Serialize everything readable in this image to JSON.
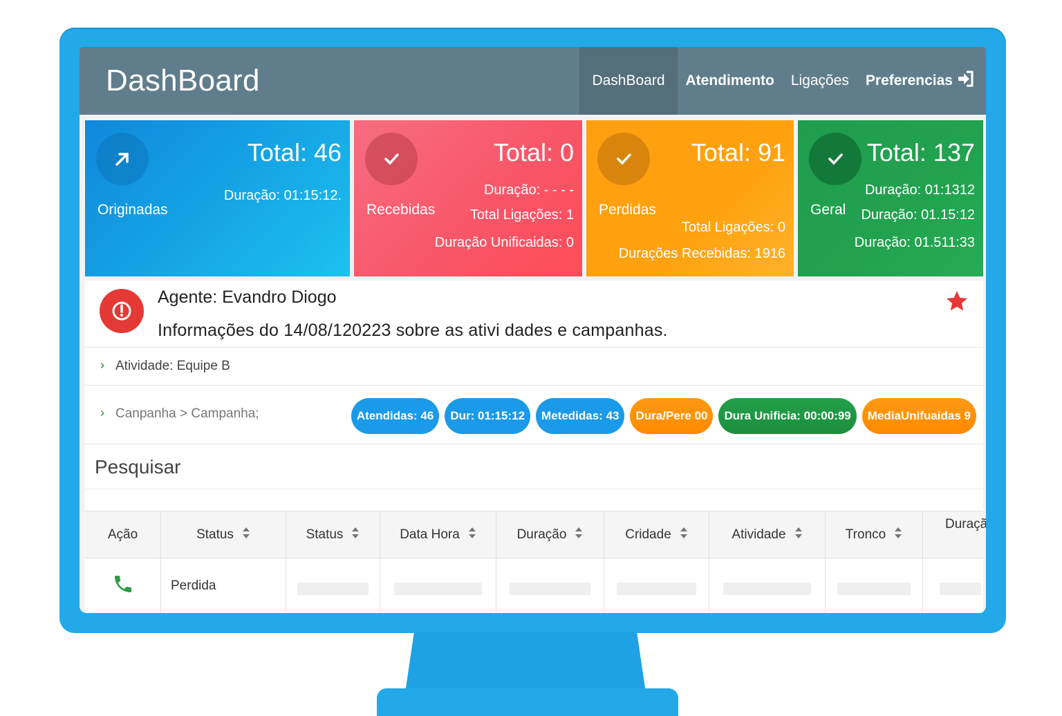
{
  "header": {
    "brand": "DashBoard",
    "nav": [
      {
        "label": "DashBoard",
        "active": true
      },
      {
        "label": "Atendimento"
      },
      {
        "label": "Ligações"
      },
      {
        "label": "Preferencias"
      }
    ],
    "login_icon": "sign-in-icon"
  },
  "cards": [
    {
      "label": "Originadas",
      "icon": "arrow-up-right-icon",
      "total": "Total: 46",
      "lines": [
        "Duração: 01:15:12."
      ],
      "color": "#169ee3"
    },
    {
      "label": "Recebidas",
      "icon": "check-icon",
      "total": "Total: 0",
      "lines": [
        "Duração: - - - -",
        "Total Ligações: 1",
        "Duração Unificaidas: 0"
      ],
      "color": "#f85c6e"
    },
    {
      "label": "Perdidas",
      "icon": "check-icon",
      "total": "Total: 91",
      "lines": [
        "Total Ligações: 0",
        "Durações Recebidas: 1916"
      ],
      "color": "#ffa412"
    },
    {
      "label": "Geral",
      "icon": "check-icon",
      "total": "Total: 137",
      "lines": [
        "Duração: 01:1312",
        "Duração: 01.15:12",
        "Duração: 01.511:33"
      ],
      "color": "#22a24f"
    }
  ],
  "agent": {
    "title": "Agente: Evandro Diogo",
    "info": "Informações do 14/08/120223 sobre as ativi dades e campanhas.",
    "alert_icon": "power-icon",
    "star_icon": "star-icon"
  },
  "activity": {
    "text": "Atividade: Equipe B"
  },
  "campaign": {
    "text": "Canpanha > Campanha;"
  },
  "pills": [
    {
      "label": "Atendidas: 46",
      "style": "blue"
    },
    {
      "label": "Dur: 01:15:12",
      "style": "blue"
    },
    {
      "label": "Metedidas: 43",
      "style": "blue"
    },
    {
      "label": "Dura/Pere 00",
      "style": "orange"
    },
    {
      "label": "Dura Unificia: 00:00:99",
      "style": "green"
    },
    {
      "label": "MediaUnifuaidas 9",
      "style": "orange"
    }
  ],
  "search": {
    "placeholder": "Pesquisar"
  },
  "table": {
    "columns": [
      "Ação",
      "Status",
      "Status",
      "Data Hora",
      "Duração",
      "Cridade",
      "Atividade",
      "Tronco",
      "Duraçã"
    ],
    "rows": [
      {
        "action_icon": "phone-icon",
        "status": "Perdida"
      }
    ]
  }
}
